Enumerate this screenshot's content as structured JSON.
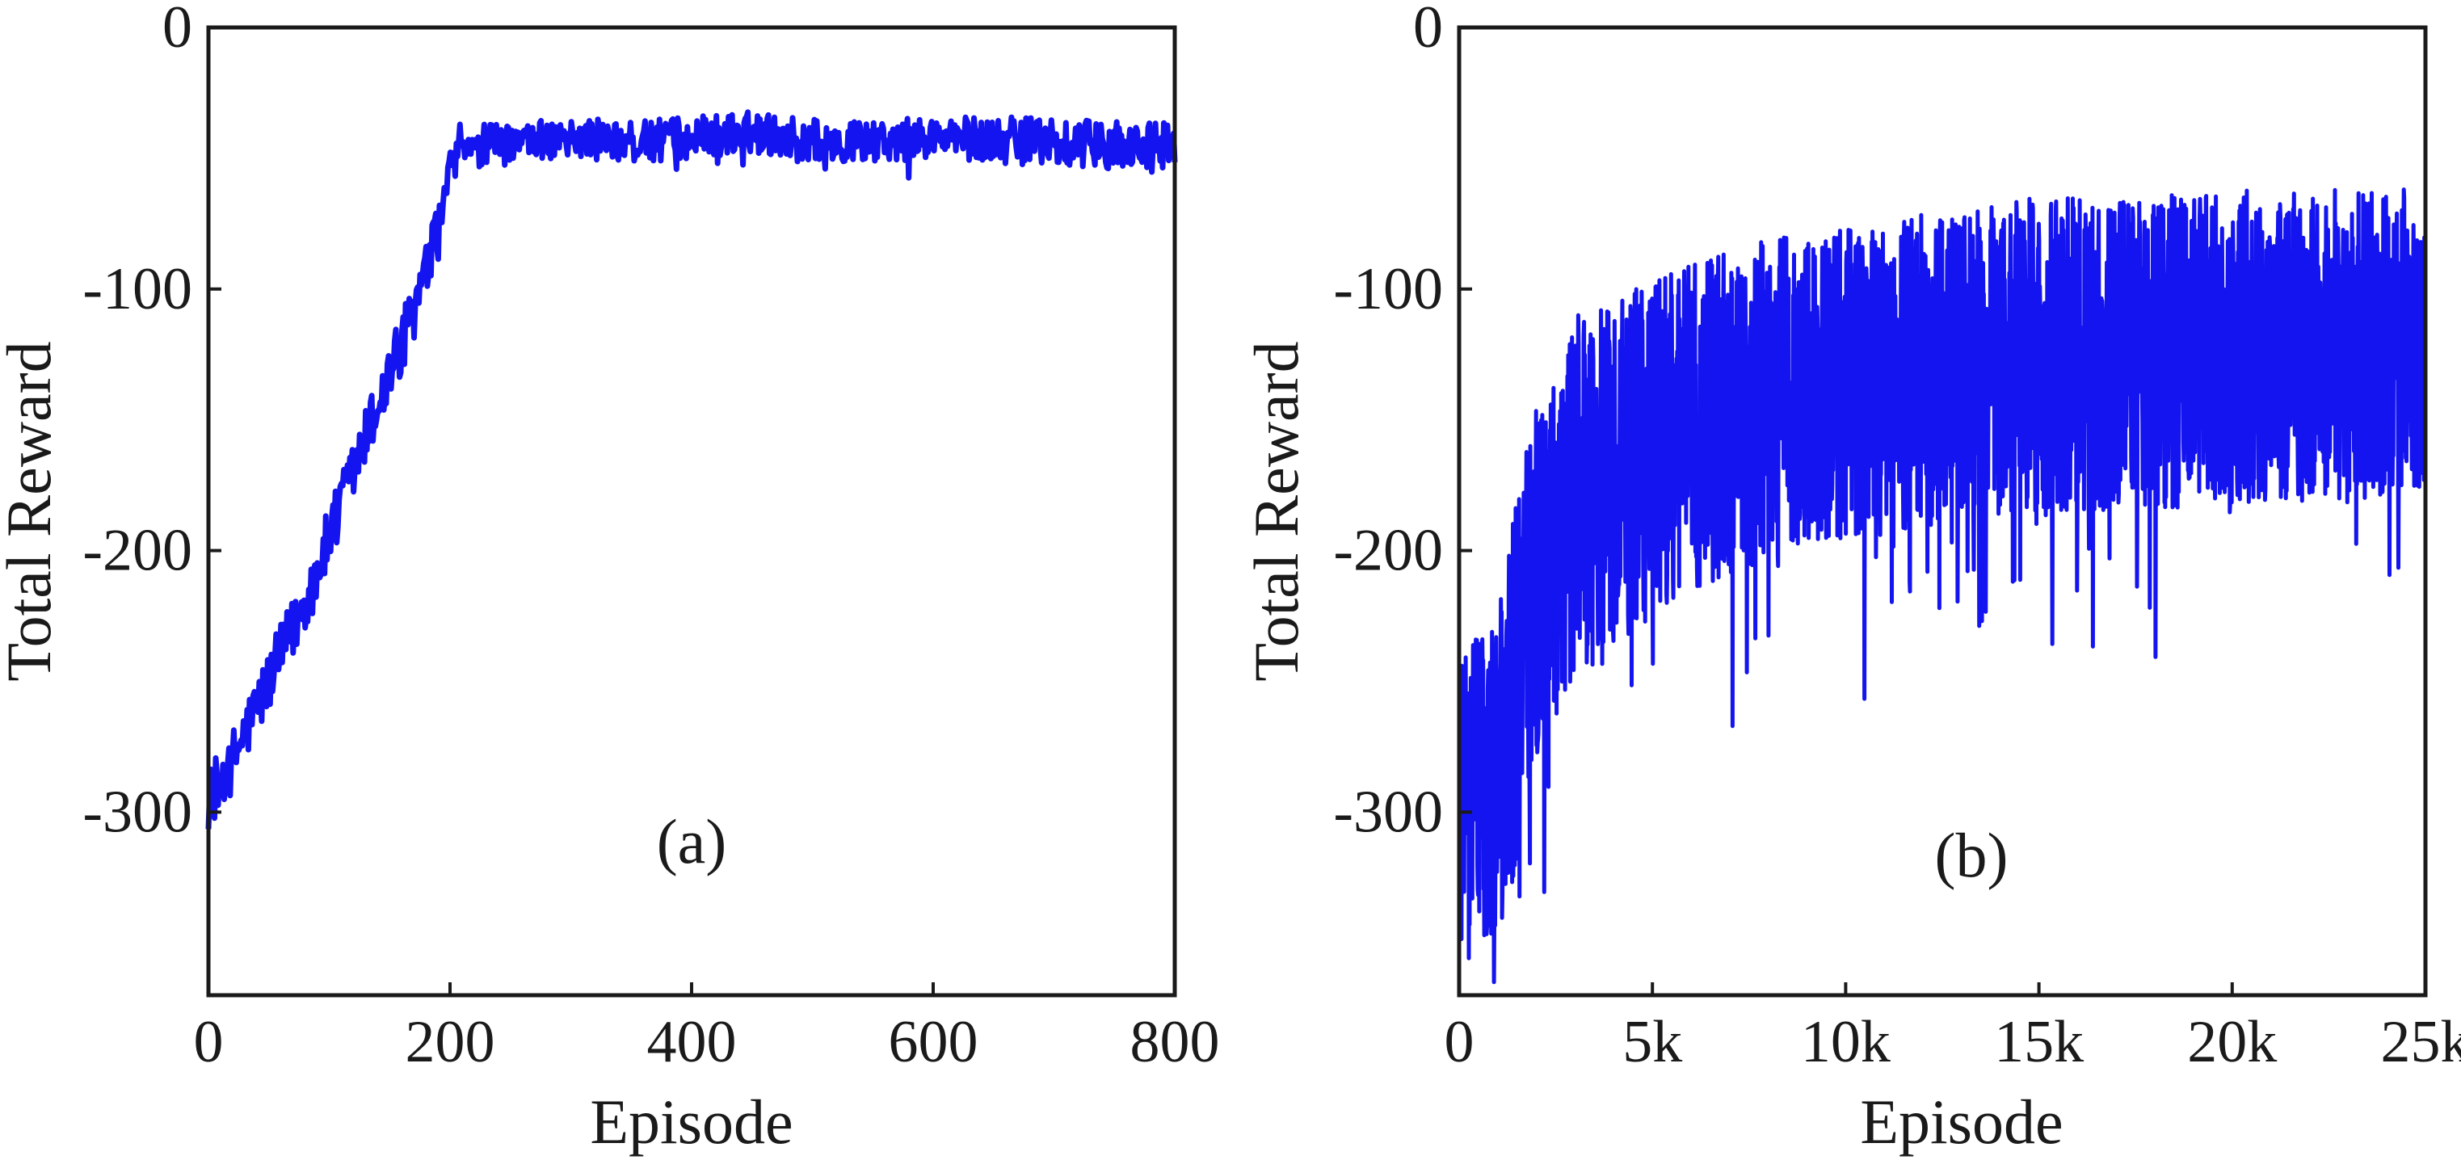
{
  "colors": {
    "line": "#1414f0",
    "axis": "#1a1a1a",
    "background": "#ffffff"
  },
  "chart_data": [
    {
      "type": "line",
      "panel_label": "(a)",
      "xlabel": "Episode",
      "ylabel": "Total Reward",
      "xlim": [
        0,
        800
      ],
      "ylim": [
        -370,
        0
      ],
      "xticks": [
        0,
        200,
        400,
        600,
        800
      ],
      "xtick_labels": [
        "0",
        "200",
        "400",
        "600",
        "800"
      ],
      "yticks": [
        0,
        -100,
        -200,
        -300
      ],
      "ytick_labels": [
        "0",
        "-100",
        "-200",
        "-300"
      ],
      "grid": false,
      "series": [
        {
          "x": [
            0,
            20,
            40,
            60,
            80,
            100,
            120,
            140,
            160,
            180,
            195,
            200,
            250,
            300,
            350,
            400,
            450,
            500,
            550,
            600,
            650,
            700,
            750,
            800
          ],
          "y": [
            -295,
            -280,
            -260,
            -240,
            -220,
            -195,
            -170,
            -145,
            -120,
            -95,
            -70,
            -45,
            -45,
            -42,
            -44,
            -42,
            -40,
            -43,
            -44,
            -42,
            -43,
            -44,
            -45,
            -45
          ],
          "noise": [
            12,
            12,
            12,
            12,
            12,
            12,
            12,
            12,
            12,
            12,
            10,
            8,
            8,
            8,
            8,
            8,
            8,
            8,
            8,
            8,
            9,
            9,
            9,
            9
          ],
          "points": 800
        }
      ]
    },
    {
      "type": "line",
      "panel_label": "(b)",
      "xlabel": "Episode",
      "ylabel": "Total Reward",
      "xlim": [
        0,
        25000
      ],
      "ylim": [
        -370,
        0
      ],
      "xticks": [
        0,
        5000,
        10000,
        15000,
        20000,
        25000
      ],
      "xtick_labels": [
        "0",
        "5k",
        "10k",
        "15k",
        "20k",
        "25k"
      ],
      "yticks": [
        0,
        -100,
        -200,
        -300
      ],
      "ytick_labels": [
        "0",
        "-100",
        "-200",
        "-300"
      ],
      "grid": false,
      "series": [
        {
          "x": [
            0,
            500,
            1000,
            1500,
            2000,
            3000,
            5000,
            7500,
            10000,
            12500,
            15000,
            17500,
            20000,
            22500,
            25000
          ],
          "y": [
            -280,
            -290,
            -285,
            -250,
            -210,
            -180,
            -160,
            -145,
            -135,
            -130,
            -125,
            -125,
            -122,
            -122,
            -120
          ],
          "noise": [
            55,
            60,
            65,
            70,
            70,
            70,
            65,
            62,
            60,
            60,
            60,
            60,
            60,
            60,
            60
          ],
          "points": 2500
        }
      ]
    }
  ]
}
